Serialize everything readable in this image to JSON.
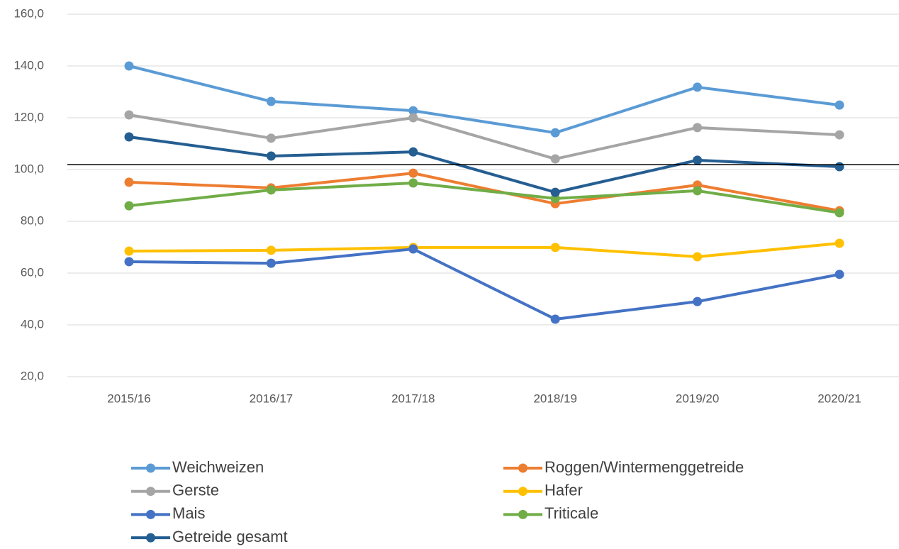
{
  "chart_data": {
    "type": "line",
    "categories": [
      "2015/16",
      "2016/17",
      "2017/18",
      "2018/19",
      "2019/20",
      "2020/21"
    ],
    "series": [
      {
        "name": "Weichweizen",
        "color": "#5b9bd5",
        "values": [
          140.0,
          126.3,
          122.7,
          114.2,
          131.8,
          124.9
        ]
      },
      {
        "name": "Roggen/Wintermenggetreide",
        "color": "#ed7d31",
        "values": [
          95.1,
          92.9,
          98.6,
          86.8,
          94.0,
          84.1
        ]
      },
      {
        "name": "Gerste",
        "color": "#a5a5a5",
        "values": [
          121.1,
          112.1,
          120.0,
          104.1,
          116.2,
          113.4
        ]
      },
      {
        "name": "Hafer",
        "color": "#ffc000",
        "values": [
          68.5,
          68.8,
          69.9,
          69.9,
          66.3,
          71.5
        ]
      },
      {
        "name": "Mais",
        "color": "#4472c4",
        "values": [
          64.4,
          63.8,
          69.3,
          42.2,
          49.0,
          59.5
        ]
      },
      {
        "name": "Triticale",
        "color": "#70ad47",
        "values": [
          86.0,
          92.1,
          94.8,
          88.8,
          91.8,
          83.3
        ]
      },
      {
        "name": "Getreide gesamt",
        "color": "#255e91",
        "values": [
          112.6,
          105.2,
          106.8,
          91.2,
          103.6,
          101.1
        ]
      }
    ],
    "ylim": [
      20,
      160
    ],
    "yticks": [
      {
        "value": 20,
        "label": "20,0"
      },
      {
        "value": 40,
        "label": "40,0"
      },
      {
        "value": 60,
        "label": "60,0"
      },
      {
        "value": 80,
        "label": "80,0"
      },
      {
        "value": 100,
        "label": "100,0"
      },
      {
        "value": 120,
        "label": "120,0"
      },
      {
        "value": 140,
        "label": "140,0"
      },
      {
        "value": 160,
        "label": "160,0"
      }
    ],
    "reference_line": 101.9,
    "grid": true
  }
}
